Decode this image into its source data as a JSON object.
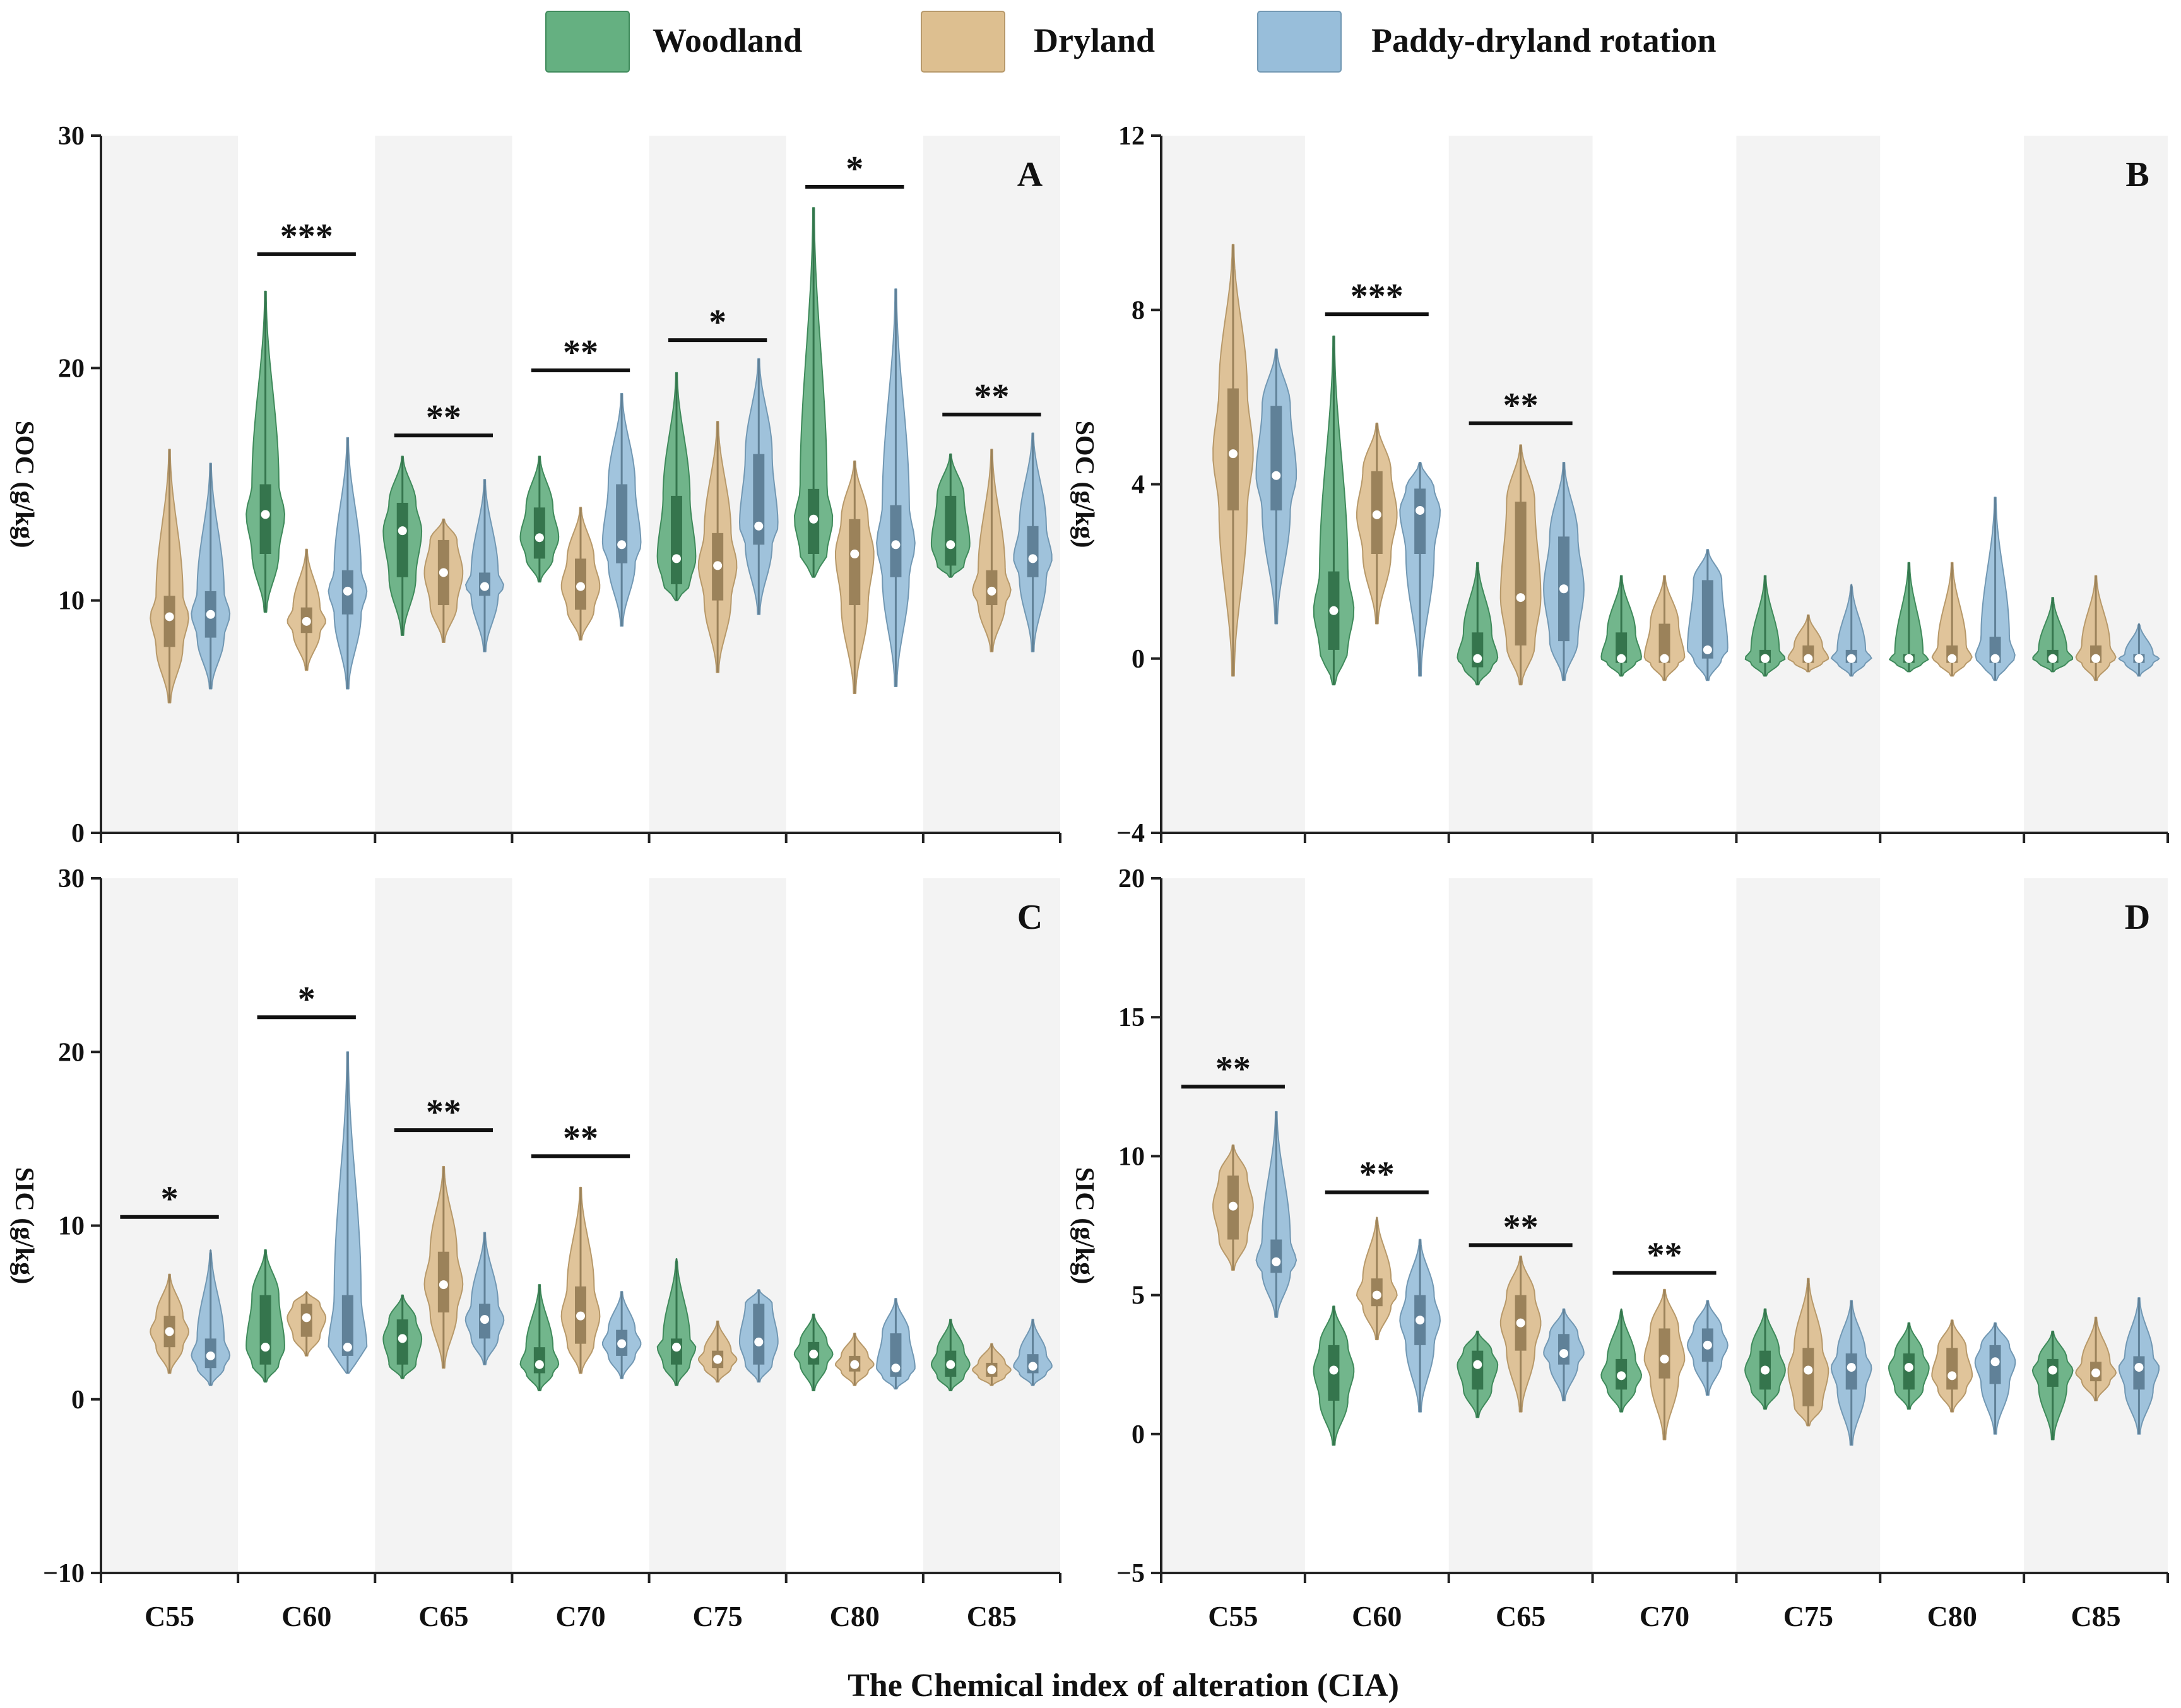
{
  "legend": [
    {
      "name": "Woodland",
      "color": "#4aa26b"
    },
    {
      "name": "Dryland",
      "color": "#d7b47d"
    },
    {
      "name": "Paddy-dryland rotation",
      "color": "#86b3d3"
    }
  ],
  "x_title": "The Chemical index of alteration (CIA)",
  "chart_data": [
    {
      "panel": "A",
      "type": "violin",
      "ylabel": "SOC (g/kg)",
      "ylim": [
        0,
        30
      ],
      "yticks": [
        "0",
        "10",
        "20",
        "30"
      ],
      "categories": [
        "C55",
        "C60",
        "C65",
        "C70",
        "C75",
        "C80",
        "C85"
      ],
      "series": [
        {
          "name": "Woodland",
          "values": [
            null,
            {
              "min": 9.5,
              "q1": 12.0,
              "median": 13.7,
              "q3": 15.0,
              "max": 23.3
            },
            {
              "min": 8.5,
              "q1": 11.0,
              "median": 13.0,
              "q3": 14.2,
              "max": 16.2
            },
            {
              "min": 10.8,
              "q1": 11.8,
              "median": 12.7,
              "q3": 14.0,
              "max": 16.2
            },
            {
              "min": 10.0,
              "q1": 10.7,
              "median": 11.8,
              "q3": 14.5,
              "max": 19.8
            },
            {
              "min": 11.0,
              "q1": 12.0,
              "median": 13.5,
              "q3": 14.8,
              "max": 26.9
            },
            {
              "min": 11.0,
              "q1": 11.5,
              "median": 12.4,
              "q3": 14.5,
              "max": 16.3
            }
          ]
        },
        {
          "name": "Dryland",
          "values": [
            {
              "min": 5.6,
              "q1": 8.0,
              "median": 9.3,
              "q3": 10.2,
              "max": 16.5
            },
            {
              "min": 7.0,
              "q1": 8.6,
              "median": 9.1,
              "q3": 9.7,
              "max": 12.2
            },
            {
              "min": 8.2,
              "q1": 9.8,
              "median": 11.2,
              "q3": 12.6,
              "max": 13.5
            },
            {
              "min": 8.3,
              "q1": 9.6,
              "median": 10.6,
              "q3": 11.8,
              "max": 14.0
            },
            {
              "min": 6.9,
              "q1": 10.0,
              "median": 11.5,
              "q3": 12.9,
              "max": 17.7
            },
            {
              "min": 6.0,
              "q1": 9.8,
              "median": 12.0,
              "q3": 13.5,
              "max": 16.0
            },
            {
              "min": 7.8,
              "q1": 9.8,
              "median": 10.4,
              "q3": 11.3,
              "max": 16.5
            }
          ]
        },
        {
          "name": "Paddy-dryland rotation",
          "values": [
            {
              "min": 6.2,
              "q1": 8.4,
              "median": 9.4,
              "q3": 10.4,
              "max": 15.9
            },
            {
              "min": 6.2,
              "q1": 9.4,
              "median": 10.4,
              "q3": 11.3,
              "max": 17.0
            },
            {
              "min": 7.8,
              "q1": 10.2,
              "median": 10.6,
              "q3": 11.2,
              "max": 15.2
            },
            {
              "min": 8.9,
              "q1": 11.6,
              "median": 12.4,
              "q3": 15.0,
              "max": 18.9
            },
            {
              "min": 9.4,
              "q1": 12.4,
              "median": 13.2,
              "q3": 16.3,
              "max": 20.4
            },
            {
              "min": 6.3,
              "q1": 11.0,
              "median": 12.4,
              "q3": 14.1,
              "max": 23.4
            },
            {
              "min": 7.8,
              "q1": 11.0,
              "median": 11.8,
              "q3": 13.2,
              "max": 17.2
            }
          ]
        }
      ],
      "significance": [
        {
          "category": "C60",
          "stars": "***",
          "level": 24.9
        },
        {
          "category": "C65",
          "stars": "**",
          "level": 17.1
        },
        {
          "category": "C70",
          "stars": "**",
          "level": 19.9
        },
        {
          "category": "C75",
          "stars": "*",
          "level": 21.2
        },
        {
          "category": "C80",
          "stars": "*",
          "level": 27.8
        },
        {
          "category": "C85",
          "stars": "**",
          "level": 18.0
        }
      ]
    },
    {
      "panel": "B",
      "type": "violin",
      "ylabel": "SOC (g/kg)",
      "ylim": [
        -4,
        12
      ],
      "yticks": [
        "−4",
        "0",
        "4",
        "8",
        "12"
      ],
      "categories": [
        "C55",
        "C60",
        "C65",
        "C70",
        "C75",
        "C80",
        "C85"
      ],
      "series": [
        {
          "name": "Woodland",
          "values": [
            null,
            {
              "min": -0.6,
              "q1": 0.2,
              "median": 1.1,
              "q3": 2.0,
              "max": 7.4
            },
            {
              "min": -0.6,
              "q1": -0.2,
              "median": 0.0,
              "q3": 0.6,
              "max": 2.2
            },
            {
              "min": -0.4,
              "q1": -0.1,
              "median": 0.0,
              "q3": 0.6,
              "max": 1.9
            },
            {
              "min": -0.4,
              "q1": -0.1,
              "median": 0.0,
              "q3": 0.2,
              "max": 1.9
            },
            {
              "min": -0.3,
              "q1": -0.1,
              "median": 0.0,
              "q3": 0.1,
              "max": 2.2
            },
            {
              "min": -0.3,
              "q1": -0.1,
              "median": 0.0,
              "q3": 0.2,
              "max": 1.4
            }
          ]
        },
        {
          "name": "Dryland",
          "values": [
            {
              "min": -0.4,
              "q1": 3.4,
              "median": 4.7,
              "q3": 6.2,
              "max": 9.5
            },
            {
              "min": 0.8,
              "q1": 2.4,
              "median": 3.3,
              "q3": 4.3,
              "max": 5.4
            },
            {
              "min": -0.6,
              "q1": 0.3,
              "median": 1.4,
              "q3": 3.6,
              "max": 4.9
            },
            {
              "min": -0.5,
              "q1": -0.1,
              "median": 0.0,
              "q3": 0.8,
              "max": 1.9
            },
            {
              "min": -0.3,
              "q1": -0.1,
              "median": 0.0,
              "q3": 0.3,
              "max": 1.0
            },
            {
              "min": -0.4,
              "q1": -0.1,
              "median": 0.0,
              "q3": 0.3,
              "max": 2.2
            },
            {
              "min": -0.5,
              "q1": -0.1,
              "median": 0.0,
              "q3": 0.3,
              "max": 1.9
            }
          ]
        },
        {
          "name": "Paddy-dryland rotation",
          "values": [
            {
              "min": 0.8,
              "q1": 3.4,
              "median": 4.2,
              "q3": 5.8,
              "max": 7.1
            },
            {
              "min": -0.4,
              "q1": 2.4,
              "median": 3.4,
              "q3": 3.9,
              "max": 4.5
            },
            {
              "min": -0.5,
              "q1": 0.4,
              "median": 1.6,
              "q3": 2.8,
              "max": 4.5
            },
            {
              "min": -0.5,
              "q1": 0.0,
              "median": 0.2,
              "q3": 1.8,
              "max": 2.5
            },
            {
              "min": -0.4,
              "q1": -0.1,
              "median": 0.0,
              "q3": 0.2,
              "max": 1.7
            },
            {
              "min": -0.5,
              "q1": -0.1,
              "median": 0.0,
              "q3": 0.5,
              "max": 3.7
            },
            {
              "min": -0.4,
              "q1": -0.1,
              "median": 0.0,
              "q3": 0.1,
              "max": 0.8
            }
          ]
        }
      ],
      "significance": [
        {
          "category": "C60",
          "stars": "***",
          "level": 7.9
        },
        {
          "category": "C65",
          "stars": "**",
          "level": 5.4
        }
      ]
    },
    {
      "panel": "C",
      "type": "violin",
      "ylabel": "SIC (g/kg)",
      "ylim": [
        -10,
        30
      ],
      "yticks": [
        "−10",
        "0",
        "10",
        "20",
        "30"
      ],
      "categories": [
        "C55",
        "C60",
        "C65",
        "C70",
        "C75",
        "C80",
        "C85"
      ],
      "series": [
        {
          "name": "Woodland",
          "values": [
            null,
            {
              "min": 1.0,
              "q1": 2.0,
              "median": 3.0,
              "q3": 6.0,
              "max": 8.6
            },
            {
              "min": 1.2,
              "q1": 2.0,
              "median": 3.5,
              "q3": 4.6,
              "max": 6.0
            },
            {
              "min": 0.5,
              "q1": 1.5,
              "median": 2.0,
              "q3": 3.0,
              "max": 6.6
            },
            {
              "min": 0.8,
              "q1": 2.0,
              "median": 3.0,
              "q3": 3.5,
              "max": 8.1
            },
            {
              "min": 0.5,
              "q1": 2.0,
              "median": 2.6,
              "q3": 3.3,
              "max": 4.9
            },
            {
              "min": 0.5,
              "q1": 1.3,
              "median": 2.0,
              "q3": 2.8,
              "max": 4.6
            }
          ]
        },
        {
          "name": "Dryland",
          "values": [
            {
              "min": 1.5,
              "q1": 3.0,
              "median": 3.9,
              "q3": 4.8,
              "max": 7.2
            },
            {
              "min": 2.5,
              "q1": 3.6,
              "median": 4.7,
              "q3": 5.5,
              "max": 6.2
            },
            {
              "min": 1.8,
              "q1": 5.0,
              "median": 6.6,
              "q3": 8.5,
              "max": 13.4
            },
            {
              "min": 1.5,
              "q1": 3.2,
              "median": 4.8,
              "q3": 6.5,
              "max": 12.2
            },
            {
              "min": 1.0,
              "q1": 1.8,
              "median": 2.3,
              "q3": 2.8,
              "max": 4.5
            },
            {
              "min": 0.8,
              "q1": 1.6,
              "median": 2.0,
              "q3": 2.5,
              "max": 3.8
            },
            {
              "min": 0.8,
              "q1": 1.3,
              "median": 1.7,
              "q3": 2.1,
              "max": 3.2
            }
          ]
        },
        {
          "name": "Paddy-dryland rotation",
          "values": [
            {
              "min": 0.8,
              "q1": 1.8,
              "median": 2.5,
              "q3": 3.5,
              "max": 8.6
            },
            {
              "min": 1.5,
              "q1": 2.5,
              "median": 3.0,
              "q3": 6.0,
              "max": 20.0
            },
            {
              "min": 2.0,
              "q1": 3.5,
              "median": 4.6,
              "q3": 5.5,
              "max": 9.6
            },
            {
              "min": 1.2,
              "q1": 2.5,
              "median": 3.2,
              "q3": 4.0,
              "max": 6.2
            },
            {
              "min": 1.0,
              "q1": 2.0,
              "median": 3.3,
              "q3": 5.5,
              "max": 6.3
            },
            {
              "min": 0.6,
              "q1": 1.3,
              "median": 1.8,
              "q3": 3.8,
              "max": 5.8
            },
            {
              "min": 0.8,
              "q1": 1.5,
              "median": 1.9,
              "q3": 2.6,
              "max": 4.6
            }
          ]
        }
      ],
      "significance": [
        {
          "category": "C55",
          "stars": "*",
          "level": 10.5
        },
        {
          "category": "C60",
          "stars": "*",
          "level": 22.0
        },
        {
          "category": "C65",
          "stars": "**",
          "level": 15.5
        },
        {
          "category": "C70",
          "stars": "**",
          "level": 14.0
        }
      ]
    },
    {
      "panel": "D",
      "type": "violin",
      "ylabel": "SIC (g/kg)",
      "ylim": [
        -5,
        20
      ],
      "yticks": [
        "−5",
        "0",
        "5",
        "10",
        "15",
        "20"
      ],
      "categories": [
        "C55",
        "C60",
        "C65",
        "C70",
        "C75",
        "C80",
        "C85"
      ],
      "series": [
        {
          "name": "Woodland",
          "values": [
            null,
            {
              "min": -0.4,
              "q1": 1.2,
              "median": 2.3,
              "q3": 3.2,
              "max": 4.6
            },
            {
              "min": 0.6,
              "q1": 1.6,
              "median": 2.5,
              "q3": 3.0,
              "max": 3.7
            },
            {
              "min": 0.8,
              "q1": 1.6,
              "median": 2.1,
              "q3": 2.7,
              "max": 4.5
            },
            {
              "min": 0.9,
              "q1": 1.6,
              "median": 2.3,
              "q3": 3.0,
              "max": 4.5
            },
            {
              "min": 0.9,
              "q1": 1.6,
              "median": 2.4,
              "q3": 2.9,
              "max": 4.0
            },
            {
              "min": -0.2,
              "q1": 1.7,
              "median": 2.3,
              "q3": 2.7,
              "max": 3.7
            }
          ]
        },
        {
          "name": "Dryland",
          "values": [
            {
              "min": 5.9,
              "q1": 7.0,
              "median": 8.2,
              "q3": 9.3,
              "max": 10.4
            },
            {
              "min": 3.4,
              "q1": 4.6,
              "median": 5.0,
              "q3": 5.6,
              "max": 7.8
            },
            {
              "min": 0.8,
              "q1": 3.0,
              "median": 4.0,
              "q3": 5.0,
              "max": 6.4
            },
            {
              "min": -0.2,
              "q1": 2.0,
              "median": 2.7,
              "q3": 3.8,
              "max": 5.2
            },
            {
              "min": 0.3,
              "q1": 1.0,
              "median": 2.3,
              "q3": 3.1,
              "max": 5.6
            },
            {
              "min": 0.8,
              "q1": 1.6,
              "median": 2.1,
              "q3": 3.1,
              "max": 4.1
            },
            {
              "min": 1.2,
              "q1": 1.9,
              "median": 2.2,
              "q3": 2.6,
              "max": 4.2
            }
          ]
        },
        {
          "name": "Paddy-dryland rotation",
          "values": [
            {
              "min": 4.2,
              "q1": 5.8,
              "median": 6.2,
              "q3": 7.0,
              "max": 11.6
            },
            {
              "min": 0.8,
              "q1": 3.2,
              "median": 4.1,
              "q3": 5.0,
              "max": 7.0
            },
            {
              "min": 1.2,
              "q1": 2.5,
              "median": 2.9,
              "q3": 3.6,
              "max": 4.5
            },
            {
              "min": 1.4,
              "q1": 2.6,
              "median": 3.2,
              "q3": 3.8,
              "max": 4.8
            },
            {
              "min": -0.4,
              "q1": 1.6,
              "median": 2.4,
              "q3": 2.9,
              "max": 4.8
            },
            {
              "min": 0.0,
              "q1": 1.8,
              "median": 2.6,
              "q3": 3.2,
              "max": 4.0
            },
            {
              "min": 0.0,
              "q1": 1.6,
              "median": 2.4,
              "q3": 2.8,
              "max": 4.9
            }
          ]
        }
      ],
      "significance": [
        {
          "category": "C55",
          "stars": "**",
          "level": 12.5
        },
        {
          "category": "C60",
          "stars": "**",
          "level": 8.7
        },
        {
          "category": "C65",
          "stars": "**",
          "level": 6.8
        },
        {
          "category": "C70",
          "stars": "**",
          "level": 5.8
        }
      ]
    }
  ]
}
